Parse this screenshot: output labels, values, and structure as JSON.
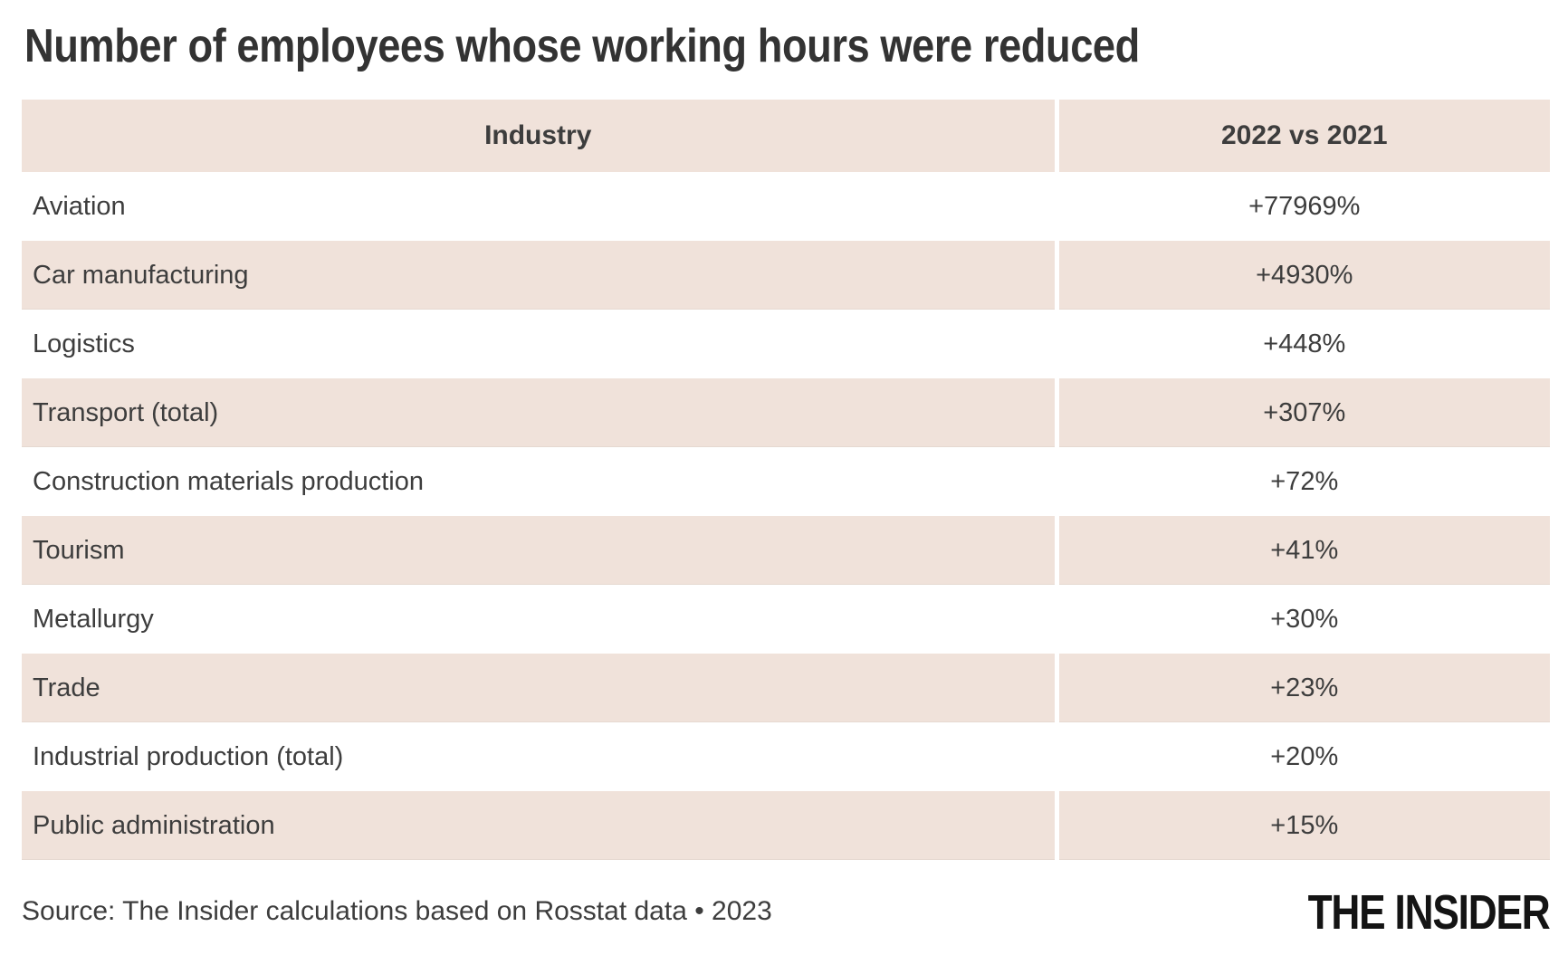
{
  "title": "Number of employees whose working hours were reduced",
  "chart_data": {
    "type": "table",
    "title": "Number of employees whose working hours were reduced",
    "columns": [
      "Industry",
      "2022 vs 2021"
    ],
    "rows": [
      {
        "industry": "Aviation",
        "change": "+77969%"
      },
      {
        "industry": "Car manufacturing",
        "change": "+4930%"
      },
      {
        "industry": "Logistics",
        "change": "+448%"
      },
      {
        "industry": "Transport (total)",
        "change": "+307%"
      },
      {
        "industry": "Construction materials production",
        "change": "+72%"
      },
      {
        "industry": "Tourism",
        "change": "+41%"
      },
      {
        "industry": "Metallurgy",
        "change": "+30%"
      },
      {
        "industry": "Trade",
        "change": "+23%"
      },
      {
        "industry": "Industrial production (total)",
        "change": "+20%"
      },
      {
        "industry": "Public administration",
        "change": "+15%"
      }
    ],
    "layout": {
      "header_fill": "accent",
      "row_striping": "alternate starting with white",
      "value_alignment": "center",
      "industry_alignment": "left"
    }
  },
  "footer": {
    "source": "Source: The Insider calculations based on Rosstat data • 2023",
    "logo": "THE INSIDER"
  },
  "colors": {
    "background": "#ffffff",
    "row_accent": "#f0e2da",
    "text": "#3d3d3d",
    "title_text": "#333333",
    "logo_text": "#141414"
  }
}
